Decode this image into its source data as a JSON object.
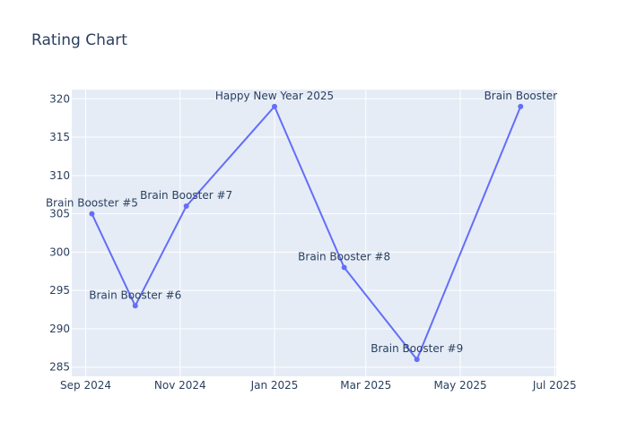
{
  "chart_data": {
    "type": "line",
    "title": "Rating Chart",
    "xlabel": "",
    "ylabel": "",
    "x_axis_type": "date",
    "xlim": [
      "2024-08-23",
      "2025-07-02"
    ],
    "ylim": [
      283.8,
      321.2
    ],
    "x_ticks": [
      {
        "date": "2024-09-01",
        "label": "Sep 2024"
      },
      {
        "date": "2024-11-01",
        "label": "Nov 2024"
      },
      {
        "date": "2025-01-01",
        "label": "Jan 2025"
      },
      {
        "date": "2025-03-01",
        "label": "Mar 2025"
      },
      {
        "date": "2025-05-01",
        "label": "May 2025"
      },
      {
        "date": "2025-07-01",
        "label": "Jul 2025"
      }
    ],
    "y_ticks": [
      285,
      290,
      295,
      300,
      305,
      310,
      315,
      320
    ],
    "grid": true,
    "line_color": "#636efa",
    "background_color": "#e5ecf6",
    "points": [
      {
        "x": "2024-09-05",
        "y": 305,
        "label": "Brain Booster #5",
        "text_pos": "top center"
      },
      {
        "x": "2024-10-03",
        "y": 293,
        "label": "Brain Booster #6",
        "text_pos": "top center"
      },
      {
        "x": "2024-11-05",
        "y": 306,
        "label": "Brain Booster #7",
        "text_pos": "top center"
      },
      {
        "x": "2025-01-01",
        "y": 319,
        "label": "Happy New Year 2025",
        "text_pos": "top center"
      },
      {
        "x": "2025-02-15",
        "y": 298,
        "label": "Brain Booster #8",
        "text_pos": "top center"
      },
      {
        "x": "2025-04-03",
        "y": 286,
        "label": "Brain Booster #9",
        "text_pos": "top center"
      },
      {
        "x": "2025-06-09",
        "y": 319,
        "label": "Brain Booster",
        "text_pos": "top center"
      }
    ]
  }
}
